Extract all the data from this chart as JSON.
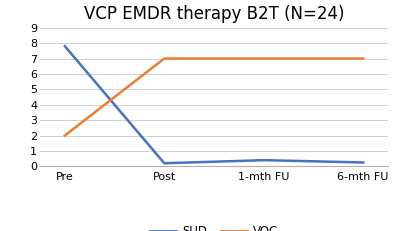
{
  "title": "VCP EMDR therapy B2T (N=24)",
  "x_labels": [
    "Pre",
    "Post",
    "1-mth FU",
    "6-mth FU"
  ],
  "SUD_values": [
    7.8,
    0.2,
    0.4,
    0.25
  ],
  "VOC_values": [
    2.0,
    7.0,
    7.0,
    7.0
  ],
  "SUD_color": "#4472c4",
  "VOC_color": "#ed7d31",
  "ylim": [
    0,
    9
  ],
  "yticks": [
    0,
    1,
    2,
    3,
    4,
    5,
    6,
    7,
    8,
    9
  ],
  "title_fontsize": 12,
  "tick_fontsize": 8,
  "legend_fontsize": 8.5,
  "background_color": "#ffffff",
  "grid_color": "#d0d0d0"
}
